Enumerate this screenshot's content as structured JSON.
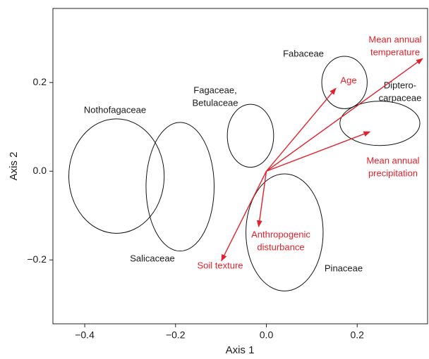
{
  "chart_data": {
    "type": "ordination",
    "xlabel": "Axis 1",
    "ylabel": "Axis 2",
    "xlim": [
      -0.47,
      0.355
    ],
    "ylim": [
      -0.344,
      0.367
    ],
    "xticks": [
      {
        "value": -0.4,
        "label": "−0.4"
      },
      {
        "value": -0.2,
        "label": "−0.2"
      },
      {
        "value": 0,
        "label": "0.0"
      },
      0.2
    ],
    "yticks": [
      {
        "value": -0.2,
        "label": "−0.2"
      },
      {
        "value": 0,
        "label": "0.0"
      },
      0.2
    ],
    "ellipse_color": "#111111",
    "vector_color": "#e3202b",
    "groups": [
      {
        "label": [
          "Nothofagaceae"
        ],
        "x": -0.33,
        "y": -0.011,
        "rx": 0.105,
        "ry": 0.129
      },
      {
        "label": [
          "Salicaceae"
        ],
        "x": -0.19,
        "y": -0.035,
        "rx": 0.075,
        "ry": 0.145
      },
      {
        "label": [
          "Fagaceae,",
          "Betulaceae"
        ],
        "x": -0.035,
        "y": 0.08,
        "rx": 0.051,
        "ry": 0.071
      },
      {
        "label": [
          "Fabaceae"
        ],
        "x": 0.172,
        "y": 0.2,
        "rx": 0.05,
        "ry": 0.059
      },
      {
        "label": [
          "Diptero-",
          "carpaceae"
        ],
        "x": 0.25,
        "y": 0.108,
        "rx": 0.088,
        "ry": 0.05
      },
      {
        "label": [
          "Pinaceae"
        ],
        "x": 0.04,
        "y": -0.138,
        "rx": 0.085,
        "ry": 0.132
      }
    ],
    "vectors": [
      {
        "label": [
          "Mean annual",
          "temperature"
        ],
        "x": 0.344,
        "y": 0.254
      },
      {
        "label": [
          "Age"
        ],
        "x": 0.153,
        "y": 0.187
      },
      {
        "label": [
          "Mean annual",
          "precipitation"
        ],
        "x": 0.228,
        "y": 0.089
      },
      {
        "label": [
          "Soil texture"
        ],
        "x": -0.099,
        "y": -0.202
      },
      {
        "label": [
          "Anthropogenic",
          "disturbance"
        ],
        "x": -0.017,
        "y": -0.125
      }
    ]
  }
}
